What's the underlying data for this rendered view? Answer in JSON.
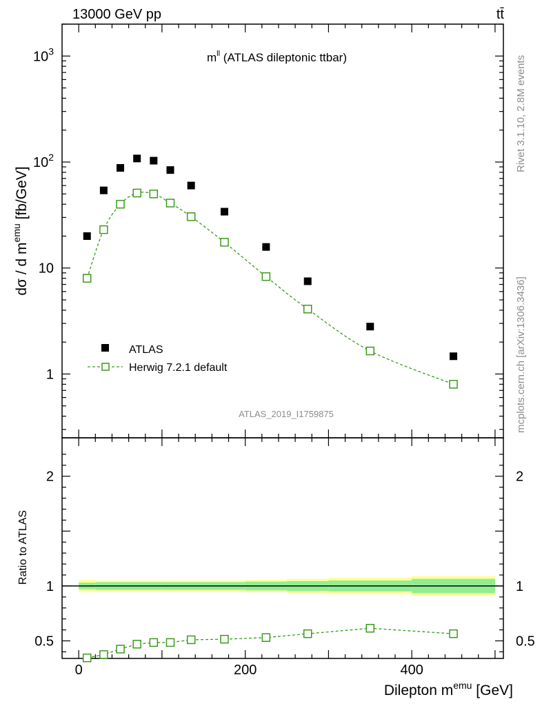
{
  "header": {
    "energy_label": "13000 GeV pp",
    "process_label": "tt̄"
  },
  "side": {
    "rivet_label": "Rivet 3.1.10,  2.8M events",
    "mcplots_label": "mcplots.cern.ch [arXiv:1306.3436]"
  },
  "chart_data": [
    {
      "type": "scatter",
      "title": "m^ll (ATLAS dileptonic ttbar)",
      "title_main": "m",
      "title_sup": "ll",
      "title_rest": " (ATLAS dileptonic ttbar)",
      "analysis_id": "ATLAS_2019_I1759875",
      "ylabel": "dσ / d m^emu [fb/GeV]",
      "ylabel_parts": {
        "pre": "dσ / d m",
        "sup": "emu",
        "post": " [fb/GeV]"
      },
      "yscale": "log",
      "ylim": [
        0.25,
        2000
      ],
      "xlim": [
        -20,
        510
      ],
      "y_ticks": [
        {
          "value": 1,
          "label": "1",
          "sup": ""
        },
        {
          "value": 10,
          "label": "10",
          "sup": ""
        },
        {
          "value": 100,
          "label": "10",
          "sup": "2"
        },
        {
          "value": 1000,
          "label": "10",
          "sup": "3"
        }
      ],
      "legend_position": "bottom-left",
      "series": [
        {
          "name": "ATLAS",
          "marker": "filled-square",
          "color": "#000000",
          "x": [
            10,
            30,
            50,
            70,
            90,
            110,
            135,
            175,
            225,
            275,
            350,
            450
          ],
          "y": [
            20,
            54,
            88,
            108,
            103,
            84,
            60,
            34,
            15.8,
            7.5,
            2.8,
            1.47
          ]
        },
        {
          "name": "Herwig 7.2.1 default",
          "marker": "open-square",
          "line": "dashed",
          "color": "#3a9a1a",
          "x": [
            10,
            30,
            50,
            70,
            90,
            110,
            135,
            175,
            225,
            275,
            350,
            450
          ],
          "y": [
            8.0,
            23,
            40,
            51,
            50,
            41,
            30.5,
            17.5,
            8.3,
            4.1,
            1.65,
            0.8
          ]
        }
      ]
    },
    {
      "type": "scatter",
      "ylabel": "Ratio to ATLAS",
      "xlabel": "Dilepton m^emu [GeV]",
      "xlabel_parts": {
        "pre": "Dilepton m",
        "sup": "emu",
        "post": " [GeV]"
      },
      "ylim": [
        0.34,
        2.35
      ],
      "xlim": [
        -20,
        510
      ],
      "x_ticks": [
        {
          "value": 0,
          "label": "0"
        },
        {
          "value": 200,
          "label": "200"
        },
        {
          "value": 400,
          "label": "400"
        }
      ],
      "y_ticks": [
        {
          "value": 0.5,
          "label": "0.5"
        },
        {
          "value": 1,
          "label": "1"
        },
        {
          "value": 2,
          "label": "2"
        }
      ],
      "bands": {
        "inner_color": "#90ee90",
        "outer_color": "#ffff99",
        "bins": [
          {
            "x0": 0,
            "x1": 20,
            "inner": 0.03,
            "outer": 0.055
          },
          {
            "x0": 20,
            "x1": 100,
            "inner": 0.035,
            "outer": 0.05
          },
          {
            "x0": 100,
            "x1": 200,
            "inner": 0.035,
            "outer": 0.05
          },
          {
            "x0": 200,
            "x1": 250,
            "inner": 0.04,
            "outer": 0.055
          },
          {
            "x0": 250,
            "x1": 300,
            "inner": 0.045,
            "outer": 0.065
          },
          {
            "x0": 300,
            "x1": 400,
            "inner": 0.05,
            "outer": 0.075
          },
          {
            "x0": 400,
            "x1": 500,
            "inner": 0.065,
            "outer": 0.09
          }
        ]
      },
      "series": [
        {
          "name": "Herwig 7.2.1 default",
          "marker": "open-square",
          "line": "dashed",
          "color": "#3a9a1a",
          "x": [
            10,
            30,
            50,
            70,
            90,
            110,
            135,
            175,
            225,
            275,
            350,
            450
          ],
          "y": [
            0.345,
            0.375,
            0.425,
            0.47,
            0.485,
            0.485,
            0.51,
            0.515,
            0.53,
            0.565,
            0.615,
            0.565
          ]
        }
      ]
    }
  ]
}
